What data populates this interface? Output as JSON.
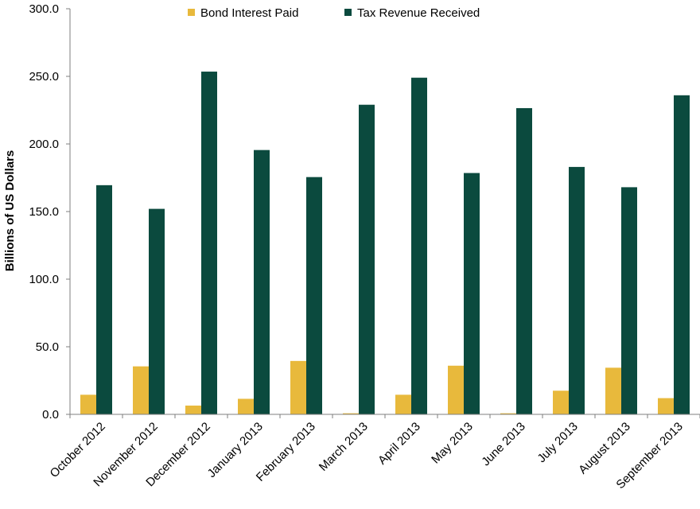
{
  "chart_data": {
    "type": "bar",
    "title": "",
    "xlabel": "",
    "ylabel": "Billions of US Dollars",
    "ylim": [
      0,
      300
    ],
    "yticks": [
      "0.0",
      "50.0",
      "100.0",
      "150.0",
      "200.0",
      "250.0",
      "300.0"
    ],
    "grid": false,
    "legend_position": "top",
    "categories": [
      "October 2012",
      "November 2012",
      "December 2012",
      "January 2013",
      "February 2013",
      "March 2013",
      "April 2013",
      "May 2013",
      "June 2013",
      "July 2013",
      "August 2013",
      "September 2013"
    ],
    "series": [
      {
        "name": "Bond Interest Paid",
        "color": "#E8B93C",
        "values": [
          14.5,
          35.5,
          6.5,
          11.5,
          39.5,
          0.8,
          14.5,
          36.0,
          0.8,
          17.5,
          34.5,
          12.0
        ]
      },
      {
        "name": "Tax Revenue Received",
        "color": "#0B4A3E",
        "values": [
          169.5,
          152.0,
          253.5,
          195.5,
          175.5,
          229.0,
          249.0,
          178.5,
          226.5,
          183.0,
          168.0,
          236.0
        ]
      }
    ]
  }
}
